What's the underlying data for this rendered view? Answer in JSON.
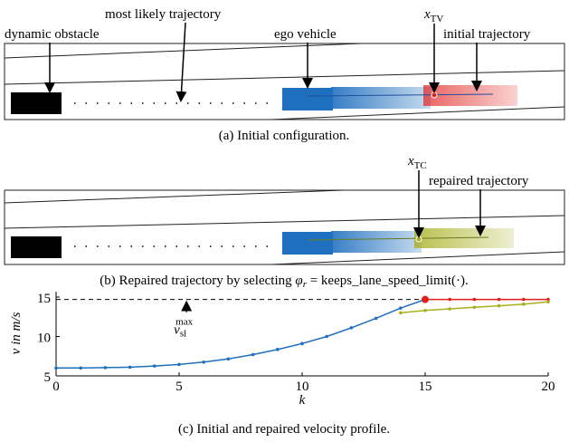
{
  "panel_a": {
    "labels": {
      "obstacle": "dynamic obstacle",
      "likely": "most likely trajectory",
      "ego": "ego vehicle",
      "x_base": "x",
      "x_sub": "TV",
      "initial": "initial trajectory"
    },
    "caption": "(a) Initial configuration."
  },
  "panel_b": {
    "labels": {
      "x_base": "x",
      "x_sub": "TC",
      "repaired": "repaired trajectory"
    },
    "caption_pre": "(b) Repaired trajectory by selecting ",
    "phi": "φ",
    "phi_sub": "r",
    "caption_post": " = keeps_lane_speed_limit(·)."
  },
  "chart_data": {
    "type": "line",
    "xlabel": "k",
    "ylabel": "v in m/s",
    "caption": "(c) Initial and repaired velocity profile.",
    "xlim": [
      0,
      20
    ],
    "ylim": [
      5,
      15
    ],
    "xticks": [
      0,
      5,
      10,
      15,
      20
    ],
    "yticks": [
      5,
      10,
      15
    ],
    "series": [
      {
        "color": "#1f6fbf",
        "x": [
          0,
          1,
          2,
          3,
          4,
          5,
          6,
          7,
          8,
          9,
          10,
          11,
          12,
          13,
          14,
          15
        ],
        "values": [
          6.0,
          6.0,
          6.05,
          6.1,
          6.25,
          6.45,
          6.75,
          7.15,
          7.7,
          8.35,
          9.1,
          10.0,
          11.1,
          12.3,
          13.6,
          14.7
        ]
      },
      {
        "color": "#e0201c",
        "x": [
          15,
          16,
          17,
          18,
          19,
          20
        ],
        "values": [
          14.7,
          14.7,
          14.7,
          14.7,
          14.7,
          14.7
        ]
      },
      {
        "color": "#a8b020",
        "x": [
          14,
          15,
          16,
          17,
          18,
          19,
          20
        ],
        "values": [
          13.0,
          13.3,
          13.5,
          13.7,
          13.9,
          14.1,
          14.4
        ]
      }
    ],
    "hline": {
      "value": 14.7,
      "annotation": {
        "base": "v",
        "sub": "sl",
        "sup": "max"
      }
    }
  }
}
